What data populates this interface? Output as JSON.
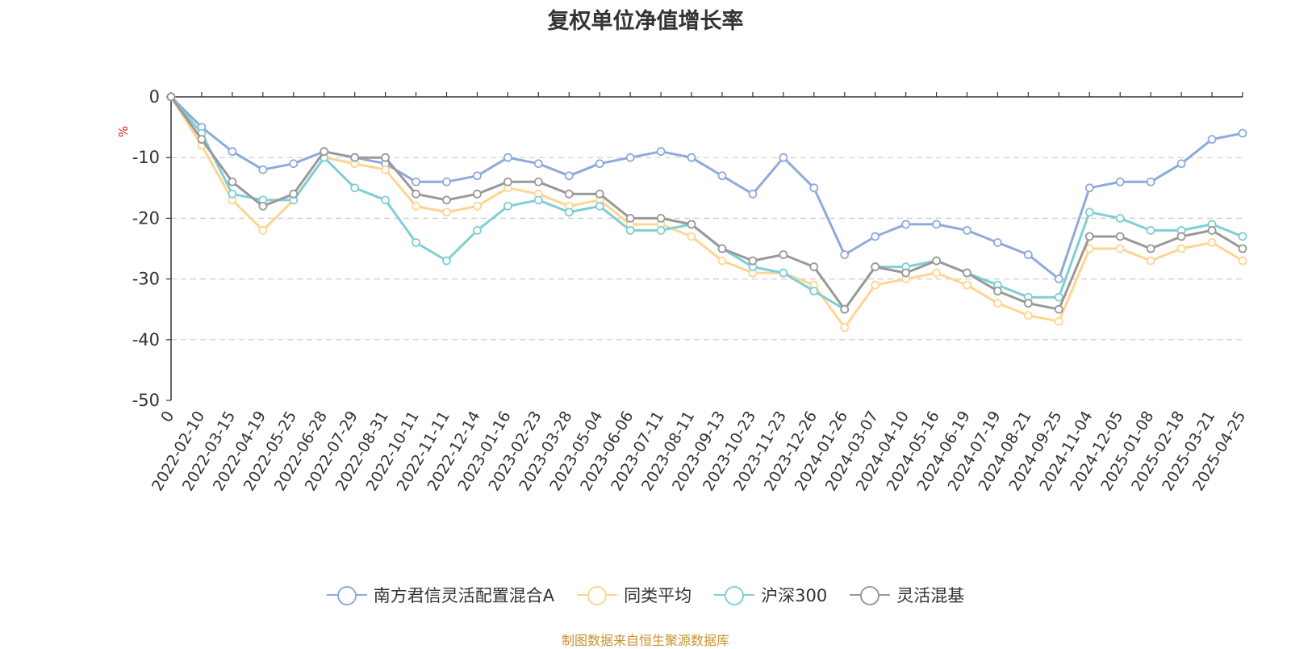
{
  "chart_data": {
    "type": "line",
    "title": "复权单位净值增长率",
    "ylabel": "%",
    "xlabel": "",
    "ylim": [
      -50,
      0
    ],
    "y_ticks": [
      "0",
      "-10",
      "-20",
      "-30",
      "-40",
      "-50"
    ],
    "x_tick_labels": [
      "0",
      "2022-02-10",
      "2022-03-15",
      "2022-04-19",
      "2022-05-25",
      "2022-06-28",
      "2022-07-29",
      "2022-08-31",
      "2022-10-11",
      "2022-11-11",
      "2022-12-14",
      "2023-01-16",
      "2023-02-23",
      "2023-03-28",
      "2023-05-04",
      "2023-06-06",
      "2023-07-11",
      "2023-08-11",
      "2023-09-13",
      "2023-10-23",
      "2023-11-23",
      "2023-12-26",
      "2024-01-26",
      "2024-03-07",
      "2024-04-10",
      "2024-05-16",
      "2024-06-19",
      "2024-07-19",
      "2024-08-21",
      "2024-09-25",
      "2024-11-04",
      "2024-12-05",
      "2025-01-08",
      "2025-02-18",
      "2025-03-21",
      "2025-04-25"
    ],
    "x": [
      "0",
      "2022-02-10",
      "2022-03-15",
      "2022-04-19",
      "2022-05-25",
      "2022-06-28",
      "2022-07-29",
      "2022-08-31",
      "2022-10-11",
      "2022-11-11",
      "2022-12-14",
      "2023-01-16",
      "2023-02-23",
      "2023-03-28",
      "2023-05-04",
      "2023-06-06",
      "2023-07-11",
      "2023-08-11",
      "2023-09-13",
      "2023-10-23",
      "2023-11-23",
      "2023-12-26",
      "2024-01-26",
      "2024-03-07",
      "2024-04-10",
      "2024-05-16",
      "2024-06-19",
      "2024-07-19",
      "2024-08-21",
      "2024-09-25",
      "2024-11-04",
      "2024-12-05",
      "2025-01-08",
      "2025-02-18",
      "2025-03-21",
      "2025-04-25"
    ],
    "series": [
      {
        "name": "南方君信灵活配置混合A",
        "color": "#8eaadb",
        "values": [
          0,
          -5,
          -9,
          -12,
          -11,
          -9,
          -10,
          -11,
          -14,
          -14,
          -13,
          -10,
          -11,
          -13,
          -11,
          -10,
          -9,
          -10,
          -13,
          -16,
          -10,
          -15,
          -26,
          -23,
          -21,
          -21,
          -22,
          -24,
          -26,
          -30,
          -15,
          -14,
          -14,
          -11,
          -7,
          -6
        ]
      },
      {
        "name": "同类平均",
        "color": "#ffd591",
        "values": [
          0,
          -8,
          -17,
          -22,
          -17,
          -10,
          -11,
          -12,
          -18,
          -19,
          -18,
          -15,
          -16,
          -18,
          -17,
          -21,
          -21,
          -23,
          -27,
          -29,
          -29,
          -31,
          -38,
          -31,
          -30,
          -29,
          -31,
          -34,
          -36,
          -37,
          -25,
          -25,
          -27,
          -25,
          -24,
          -27
        ]
      },
      {
        "name": "沪深300",
        "color": "#7fcfd4",
        "values": [
          0,
          -6,
          -16,
          -17,
          -17,
          -10,
          -15,
          -17,
          -24,
          -27,
          -22,
          -18,
          -17,
          -19,
          -18,
          -22,
          -22,
          -21,
          -25,
          -28,
          -29,
          -32,
          -35,
          -28,
          -28,
          -27,
          -29,
          -31,
          -33,
          -33,
          -19,
          -20,
          -22,
          -22,
          -21,
          -23
        ]
      },
      {
        "name": "灵活混基",
        "color": "#999999",
        "values": [
          0,
          -7,
          -14,
          -18,
          -16,
          -9,
          -10,
          -10,
          -16,
          -17,
          -16,
          -14,
          -14,
          -16,
          -16,
          -20,
          -20,
          -21,
          -25,
          -27,
          -26,
          -28,
          -35,
          -28,
          -29,
          -27,
          -29,
          -32,
          -34,
          -35,
          -23,
          -23,
          -25,
          -23,
          -22,
          -25
        ]
      }
    ]
  },
  "legend": {
    "items": [
      {
        "label": "南方君信灵活配置混合A",
        "color": "#8eaadb"
      },
      {
        "label": "同类平均",
        "color": "#ffd591"
      },
      {
        "label": "沪深300",
        "color": "#7fcfd4"
      },
      {
        "label": "灵活混基",
        "color": "#999999"
      }
    ]
  },
  "source_text": "制图数据来自恒生聚源数据库"
}
